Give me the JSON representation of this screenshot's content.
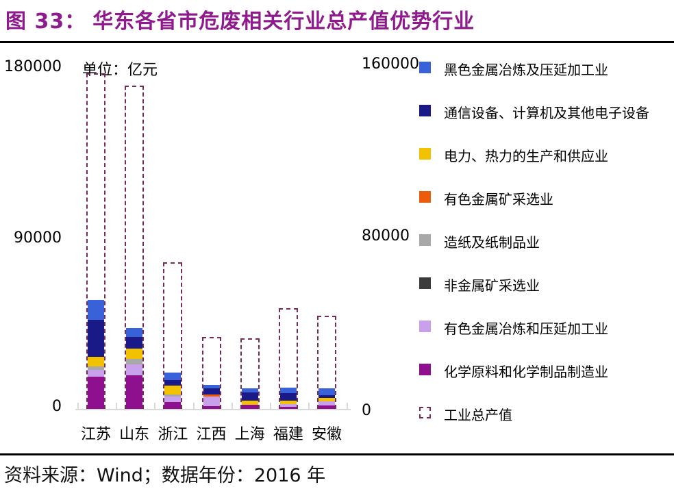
{
  "title": {
    "prefix": "图 33：",
    "text": "华东各省市危废相关行业总产值优势行业"
  },
  "unit_label": "单位：亿元",
  "source_line": "资料来源：Wind；数据年份：2016 年",
  "colors": {
    "title": "#8E1A8E",
    "axis_line": "#D9D9D9",
    "dashed_outline": "#752B56",
    "blue": "#3A62D8",
    "navy": "#191987",
    "yellow": "#F2C100",
    "orange": "#EC5D0B",
    "gray": "#A8A8A8",
    "black": "#3B3B3B",
    "lavender": "#C9A0EC",
    "magenta": "#8E108E"
  },
  "axes": {
    "left": {
      "ticks": [
        "180000",
        "90000",
        "0"
      ],
      "range": [
        0,
        180000
      ]
    },
    "right": {
      "ticks": [
        "160000",
        "80000",
        "0"
      ],
      "range": [
        0,
        160000
      ]
    }
  },
  "chart_data": {
    "type": "bar",
    "subtype": "stacked-with-dashed-total-overlay",
    "title": "华东各省市危废相关行业总产值优势行业",
    "unit": "亿元",
    "grid": false,
    "legend_position": "right",
    "categories": [
      "江苏",
      "山东",
      "浙江",
      "江西",
      "上海",
      "福建",
      "安徽"
    ],
    "ylim_left": [
      0,
      180000
    ],
    "ylim_right": [
      0,
      160000
    ],
    "series": [
      {
        "name": "化学原料和化学制品制造业",
        "color": "magenta",
        "axis": "left",
        "values": [
          16900,
          17600,
          3600,
          1400,
          2200,
          1100,
          1800
        ]
      },
      {
        "name": "有色金属冶炼和压延加工业",
        "color": "lavender",
        "axis": "left",
        "values": [
          3600,
          5800,
          2900,
          5000,
          0,
          1400,
          2200
        ]
      },
      {
        "name": "非金属矿采选业",
        "color": "black",
        "axis": "left",
        "values": [
          0,
          0,
          0,
          0,
          0,
          0,
          0
        ]
      },
      {
        "name": "造纸及纸制品业",
        "color": "gray",
        "axis": "left",
        "values": [
          1800,
          2900,
          1100,
          0,
          0,
          0,
          0
        ]
      },
      {
        "name": "有色金属矿采选业",
        "color": "orange",
        "axis": "left",
        "values": [
          0,
          0,
          0,
          1100,
          0,
          0,
          0
        ]
      },
      {
        "name": "电力、热力的生产和供应业",
        "color": "yellow",
        "axis": "left",
        "values": [
          5000,
          5400,
          4700,
          0,
          2200,
          1800,
          1800
        ]
      },
      {
        "name": "通信设备、计算机及其他电子设备",
        "color": "navy",
        "axis": "left",
        "values": [
          19400,
          6100,
          2900,
          3200,
          4300,
          4000,
          1400
        ]
      },
      {
        "name": "黑色金属冶炼及压延加工业",
        "color": "blue",
        "axis": "left",
        "values": [
          10400,
          4700,
          4000,
          1800,
          2200,
          2900,
          3600
        ]
      }
    ],
    "outline_series": {
      "name": "工业总产值",
      "style": "dashed-outline",
      "axis": "right",
      "values": [
        156800,
        151000,
        68500,
        33600,
        33000,
        47000,
        43500
      ]
    }
  },
  "legend": {
    "items": [
      {
        "label": "黑色金属冶炼及压延加工业",
        "color": "blue",
        "type": "fill"
      },
      {
        "label": "通信设备、计算机及其他电子设备",
        "color": "navy",
        "type": "fill"
      },
      {
        "label": "电力、热力的生产和供应业",
        "color": "yellow",
        "type": "fill"
      },
      {
        "label": "有色金属矿采选业",
        "color": "orange",
        "type": "fill"
      },
      {
        "label": "造纸及纸制品业",
        "color": "gray",
        "type": "fill"
      },
      {
        "label": "非金属矿采选业",
        "color": "black",
        "type": "fill"
      },
      {
        "label": "有色金属冶炼和压延加工业",
        "color": "lavender",
        "type": "fill"
      },
      {
        "label": "化学原料和化学制品制造业",
        "color": "magenta",
        "type": "fill"
      },
      {
        "label": "工业总产值",
        "color": "dashed",
        "type": "dashed"
      }
    ]
  }
}
